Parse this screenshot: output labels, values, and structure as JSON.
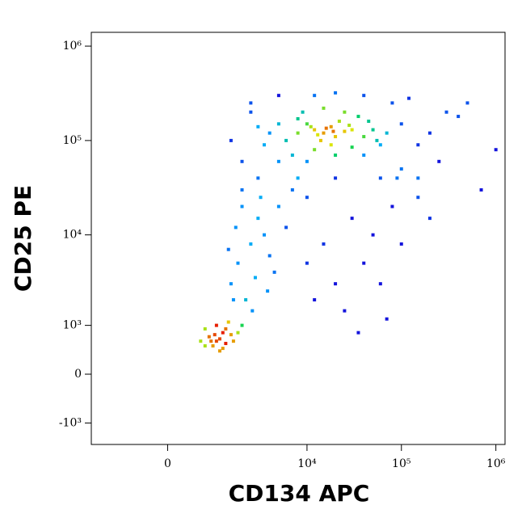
{
  "chart_data": {
    "type": "scatter",
    "x_label": "CD134 APC",
    "y_label": "CD25 PE",
    "xscale": "asinh",
    "yscale": "asinh",
    "xlim": [
      -2100,
      1250000
    ],
    "ylim": [
      -1800,
      1400000
    ],
    "xticks": [
      0,
      {
        "value": 10000,
        "label": "10⁴"
      },
      {
        "value": 100000,
        "label": "10⁵"
      },
      {
        "value": 1000000,
        "label": "10⁶"
      }
    ],
    "yticks": [
      {
        "value": -1000,
        "label": "-10³"
      },
      0,
      {
        "value": 1000,
        "label": "10³"
      },
      {
        "value": 10000,
        "label": "10⁴"
      },
      {
        "value": 100000,
        "label": "10⁵"
      },
      {
        "value": 1000000,
        "label": "10⁶"
      }
    ],
    "x": [
      12000,
      15000,
      18000,
      20000,
      25000,
      10000,
      14000,
      22000,
      30000,
      8000,
      16000,
      19000,
      13000,
      28000,
      11000,
      5000,
      6000,
      4000,
      40000,
      50000,
      60000,
      35000,
      9000,
      7000,
      12000,
      20000,
      30000,
      45000,
      3500,
      25000,
      15000,
      5000,
      70000,
      40000,
      10000,
      18000,
      3000,
      8000,
      55000,
      2500,
      100000,
      150000,
      200000,
      300000,
      500000,
      1000000,
      80000,
      40000,
      5000,
      2000,
      100000,
      60000,
      20000,
      8000,
      3000,
      1500,
      250000,
      700000,
      400000,
      120000,
      20000,
      12000,
      2500,
      150000,
      2000,
      3000,
      2500,
      1800,
      3500,
      1500,
      2200,
      4000,
      2800,
      1700,
      3200,
      5000,
      6000,
      4500,
      1400,
      2600,
      3800,
      2000,
      7000,
      10000,
      1600,
      15000,
      30000,
      50000,
      20000,
      40000,
      80000,
      100000,
      60000,
      25000,
      12000,
      70000,
      150000,
      200000,
      35000,
      10000,
      90000,
      800,
      1000,
      1200,
      900,
      1100,
      1300,
      700,
      1500,
      1000,
      1200,
      850,
      1400,
      600,
      1800,
      950,
      1100,
      1600,
      700,
      2000,
      1300
    ],
    "values": [
      130000,
      120000,
      140000,
      110000,
      125000,
      150000,
      100000,
      160000,
      130000,
      120000,
      135000,
      125000,
      115000,
      145000,
      140000,
      150000,
      100000,
      120000,
      110000,
      130000,
      90000,
      180000,
      200000,
      70000,
      80000,
      70000,
      85000,
      160000,
      90000,
      200000,
      220000,
      60000,
      120000,
      70000,
      60000,
      90000,
      140000,
      170000,
      100000,
      200000,
      150000,
      90000,
      120000,
      200000,
      250000,
      80000,
      250000,
      300000,
      300000,
      60000,
      50000,
      40000,
      40000,
      40000,
      40000,
      100000,
      60000,
      30000,
      180000,
      280000,
      320000,
      300000,
      250000,
      40000,
      20000,
      15000,
      8000,
      5000,
      10000,
      3000,
      2000,
      6000,
      3500,
      12000,
      25000,
      20000,
      12000,
      4000,
      7000,
      1500,
      2500,
      30000,
      30000,
      25000,
      2000,
      8000,
      15000,
      10000,
      3000,
      5000,
      20000,
      8000,
      3000,
      1500,
      2000,
      1200,
      25000,
      15000,
      800,
      5000,
      40000,
      700,
      600,
      800,
      500,
      650,
      550,
      900,
      750,
      1000,
      450,
      600,
      1100,
      600,
      800,
      750,
      400,
      600,
      500,
      1000,
      900
    ]
  }
}
